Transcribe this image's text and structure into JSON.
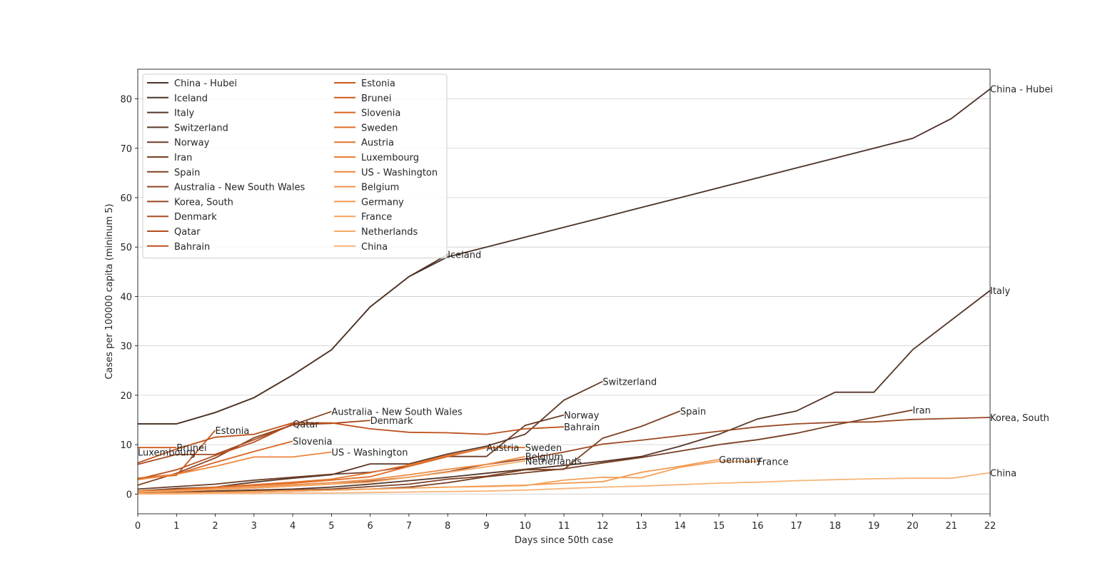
{
  "chart_data": {
    "type": "line",
    "title": "",
    "xlabel": "Days since 50th case",
    "ylabel": "Cases per 100000 capita (mininum 5)",
    "xlim": [
      0,
      22
    ],
    "ylim": [
      -4,
      86
    ],
    "xticks": [
      0,
      1,
      2,
      3,
      4,
      5,
      6,
      7,
      8,
      9,
      10,
      11,
      12,
      13,
      14,
      15,
      16,
      17,
      18,
      19,
      20,
      21,
      22
    ],
    "yticks": [
      0,
      10,
      20,
      30,
      40,
      50,
      60,
      70,
      80
    ],
    "grid": "horizontal",
    "legend": {
      "placement": "top-left",
      "columns": 2
    },
    "series": [
      {
        "name": "China - Hubei",
        "color": "#4a3328",
        "x": [
          0,
          1,
          2,
          3,
          4,
          5,
          6,
          7,
          8,
          9,
          10,
          11,
          12,
          13,
          14,
          15,
          16,
          17,
          18,
          19,
          20,
          21,
          22
        ],
        "values": [
          14.2,
          14.2,
          16.5,
          19.5,
          24.1,
          29.2,
          37.9,
          44.0,
          48.0,
          50.0,
          52.0,
          54.0,
          56.0,
          58.0,
          60.0,
          62.0,
          64.0,
          66.0,
          68.0,
          70.0,
          72.0,
          76.0,
          82.0
        ]
      },
      {
        "name": "Iceland",
        "color": "#4e3427",
        "x": [
          0,
          1,
          2,
          3,
          4,
          5,
          6,
          7,
          8
        ],
        "values": [
          14.2,
          14.2,
          16.5,
          19.5,
          24.1,
          29.2,
          37.9,
          44.0,
          48.5
        ]
      },
      {
        "name": "Italy",
        "color": "#553628",
        "x": [
          0,
          1,
          2,
          3,
          4,
          5,
          6,
          7,
          8,
          9,
          10,
          11,
          12,
          13,
          14,
          15,
          16,
          17,
          18,
          19,
          20,
          21,
          22
        ],
        "values": [
          0.1,
          0.4,
          0.6,
          0.8,
          1.0,
          1.4,
          2.0,
          2.7,
          3.4,
          4.2,
          5.0,
          5.8,
          6.6,
          7.6,
          9.7,
          12.1,
          15.2,
          16.8,
          20.6,
          20.6,
          29.2,
          35.2,
          41.2
        ]
      },
      {
        "name": "Switzerland",
        "color": "#5b3828",
        "x": [
          0,
          1,
          2,
          3,
          4,
          5,
          6,
          7,
          8,
          9,
          10,
          11,
          12
        ],
        "values": [
          0.6,
          1.1,
          1.4,
          2.4,
          3.2,
          3.9,
          6.1,
          6.1,
          8.1,
          9.7,
          12.1,
          19.0,
          22.8
        ]
      },
      {
        "name": "Norway",
        "color": "#6b3c26",
        "x": [
          0,
          1,
          2,
          3,
          4,
          5,
          6,
          7,
          8,
          9,
          10,
          11
        ],
        "values": [
          1.0,
          1.5,
          2.0,
          2.8,
          3.4,
          4.0,
          4.4,
          5.6,
          7.6,
          7.6,
          13.9,
          16.0
        ]
      },
      {
        "name": "Iran",
        "color": "#753f24",
        "x": [
          0,
          1,
          2,
          3,
          4,
          5,
          6,
          7,
          8,
          9,
          10,
          11,
          12,
          13,
          14,
          15,
          16,
          17,
          18,
          19,
          20
        ],
        "values": [
          0.1,
          0.2,
          0.3,
          0.4,
          0.6,
          0.8,
          1.0,
          1.4,
          2.3,
          3.5,
          4.3,
          5.1,
          6.3,
          7.4,
          8.7,
          10.0,
          11.0,
          12.3,
          14.0,
          15.5,
          17.0
        ]
      },
      {
        "name": "Spain",
        "color": "#7e4224",
        "x": [
          0,
          1,
          2,
          3,
          4,
          5,
          6,
          7,
          8,
          9,
          10,
          11,
          12,
          13,
          14
        ],
        "values": [
          0.2,
          0.3,
          0.5,
          0.6,
          0.8,
          1.0,
          1.5,
          2.0,
          3.0,
          3.6,
          4.9,
          5.0,
          11.3,
          13.7,
          16.8
        ]
      },
      {
        "name": "Australia - New South Wales",
        "color": "#8a4423",
        "x": [
          0,
          1,
          2,
          3,
          4,
          5
        ],
        "values": [
          1.8,
          4.2,
          7.3,
          11.4,
          14.0,
          16.7
        ]
      },
      {
        "name": "Korea, South",
        "color": "#9a4822",
        "x": [
          0,
          1,
          2,
          3,
          4,
          5,
          6,
          7,
          8,
          9,
          10,
          11,
          12,
          13,
          14,
          15,
          16,
          17,
          18,
          19,
          20,
          21,
          22
        ],
        "values": [
          0.3,
          0.6,
          0.9,
          1.2,
          1.6,
          2.0,
          2.6,
          3.4,
          4.5,
          6.0,
          7.1,
          8.5,
          10.1,
          10.9,
          11.8,
          12.7,
          13.6,
          14.2,
          14.5,
          14.6,
          15.1,
          15.3,
          15.5
        ]
      },
      {
        "name": "Denmark",
        "color": "#a84b20",
        "x": [
          0,
          1,
          2,
          3,
          4,
          5,
          6
        ],
        "values": [
          6.0,
          8.0,
          8.0,
          11.0,
          14.0,
          14.3,
          14.9
        ]
      },
      {
        "name": "Qatar",
        "color": "#b54e1e",
        "x": [
          0,
          1,
          2,
          3,
          4
        ],
        "values": [
          3.0,
          4.9,
          7.8,
          10.5,
          14.2
        ]
      },
      {
        "name": "Bahrain",
        "color": "#be511d",
        "x": [
          0,
          1,
          2,
          3,
          4,
          5,
          6,
          7,
          8,
          9,
          10,
          11
        ],
        "values": [
          6.3,
          9.1,
          11.5,
          12.1,
          14.4,
          14.4,
          13.2,
          12.5,
          12.4,
          12.1,
          13.2,
          13.6
        ]
      },
      {
        "name": "Estonia",
        "color": "#c9561e",
        "x": [
          0,
          1,
          2
        ],
        "values": [
          3.1,
          3.8,
          12.9
        ]
      },
      {
        "name": "Brunei",
        "color": "#d05b1f",
        "x": [
          0,
          1
        ],
        "values": [
          9.4,
          9.4
        ]
      },
      {
        "name": "Slovenia",
        "color": "#d96320",
        "x": [
          0,
          1,
          2,
          3,
          4
        ],
        "values": [
          3.2,
          4.0,
          6.4,
          8.6,
          10.7
        ]
      },
      {
        "name": "Sweden",
        "color": "#e06b25",
        "x": [
          0,
          1,
          2,
          3,
          4,
          5,
          6,
          7,
          8,
          9,
          10
        ],
        "values": [
          0.5,
          0.8,
          1.3,
          1.7,
          2.2,
          2.8,
          3.5,
          5.6,
          7.6,
          9.4,
          9.4
        ]
      },
      {
        "name": "Austria",
        "color": "#e5742c",
        "x": [
          0,
          1,
          2,
          3,
          4,
          5,
          6,
          7,
          8,
          9
        ],
        "values": [
          0.6,
          0.9,
          1.4,
          1.9,
          2.4,
          3.0,
          4.3,
          5.9,
          7.8,
          9.4
        ]
      },
      {
        "name": "Luxembourg",
        "color": "#ea7d34",
        "x": [
          0
        ],
        "values": [
          8.5
        ]
      },
      {
        "name": "US - Washington",
        "color": "#ee863c",
        "x": [
          0,
          1,
          2,
          3,
          4,
          5
        ],
        "values": [
          2.9,
          4.0,
          5.6,
          7.5,
          7.5,
          8.5
        ]
      },
      {
        "name": "Belgium",
        "color": "#f08f45",
        "x": [
          0,
          1,
          2,
          3,
          4,
          5,
          6,
          7,
          8,
          9,
          10
        ],
        "values": [
          0.4,
          0.7,
          1.0,
          1.4,
          1.9,
          2.3,
          2.9,
          3.9,
          5.0,
          6.0,
          7.6
        ]
      },
      {
        "name": "Germany",
        "color": "#f3984f",
        "x": [
          0,
          1,
          2,
          3,
          4,
          5,
          6,
          7,
          8,
          9,
          10,
          11,
          12,
          13,
          14,
          15
        ],
        "values": [
          0.1,
          0.2,
          0.3,
          0.4,
          0.6,
          0.8,
          1.0,
          1.2,
          1.4,
          1.6,
          1.8,
          2.2,
          2.5,
          4.4,
          5.6,
          7.0
        ]
      },
      {
        "name": "France",
        "color": "#f5a15a",
        "x": [
          0,
          1,
          2,
          3,
          4,
          5,
          6,
          7,
          8,
          9,
          10,
          11,
          12,
          13,
          14,
          15,
          16
        ],
        "values": [
          0.1,
          0.2,
          0.3,
          0.5,
          0.7,
          0.8,
          1.0,
          1.2,
          1.4,
          1.5,
          1.7,
          2.8,
          3.4,
          3.3,
          5.4,
          6.6,
          6.6
        ]
      },
      {
        "name": "Netherlands",
        "color": "#f7aa66",
        "x": [
          0,
          1,
          2,
          3,
          4,
          5,
          6,
          7,
          8,
          9,
          10
        ],
        "values": [
          0.4,
          0.6,
          0.9,
          1.2,
          1.6,
          2.0,
          2.4,
          3.4,
          4.4,
          5.5,
          6.7
        ]
      },
      {
        "name": "China",
        "color": "#f9b57a",
        "x": [
          0,
          1,
          2,
          3,
          4,
          5,
          6,
          7,
          8,
          9,
          10,
          11,
          12,
          13,
          14,
          15,
          16,
          17,
          18,
          19,
          20,
          21,
          22
        ],
        "values": [
          0.0,
          0.0,
          0.1,
          0.1,
          0.2,
          0.2,
          0.3,
          0.4,
          0.5,
          0.6,
          0.8,
          1.1,
          1.4,
          1.6,
          1.9,
          2.2,
          2.4,
          2.7,
          2.9,
          3.1,
          3.2,
          3.2,
          4.3
        ]
      }
    ]
  }
}
